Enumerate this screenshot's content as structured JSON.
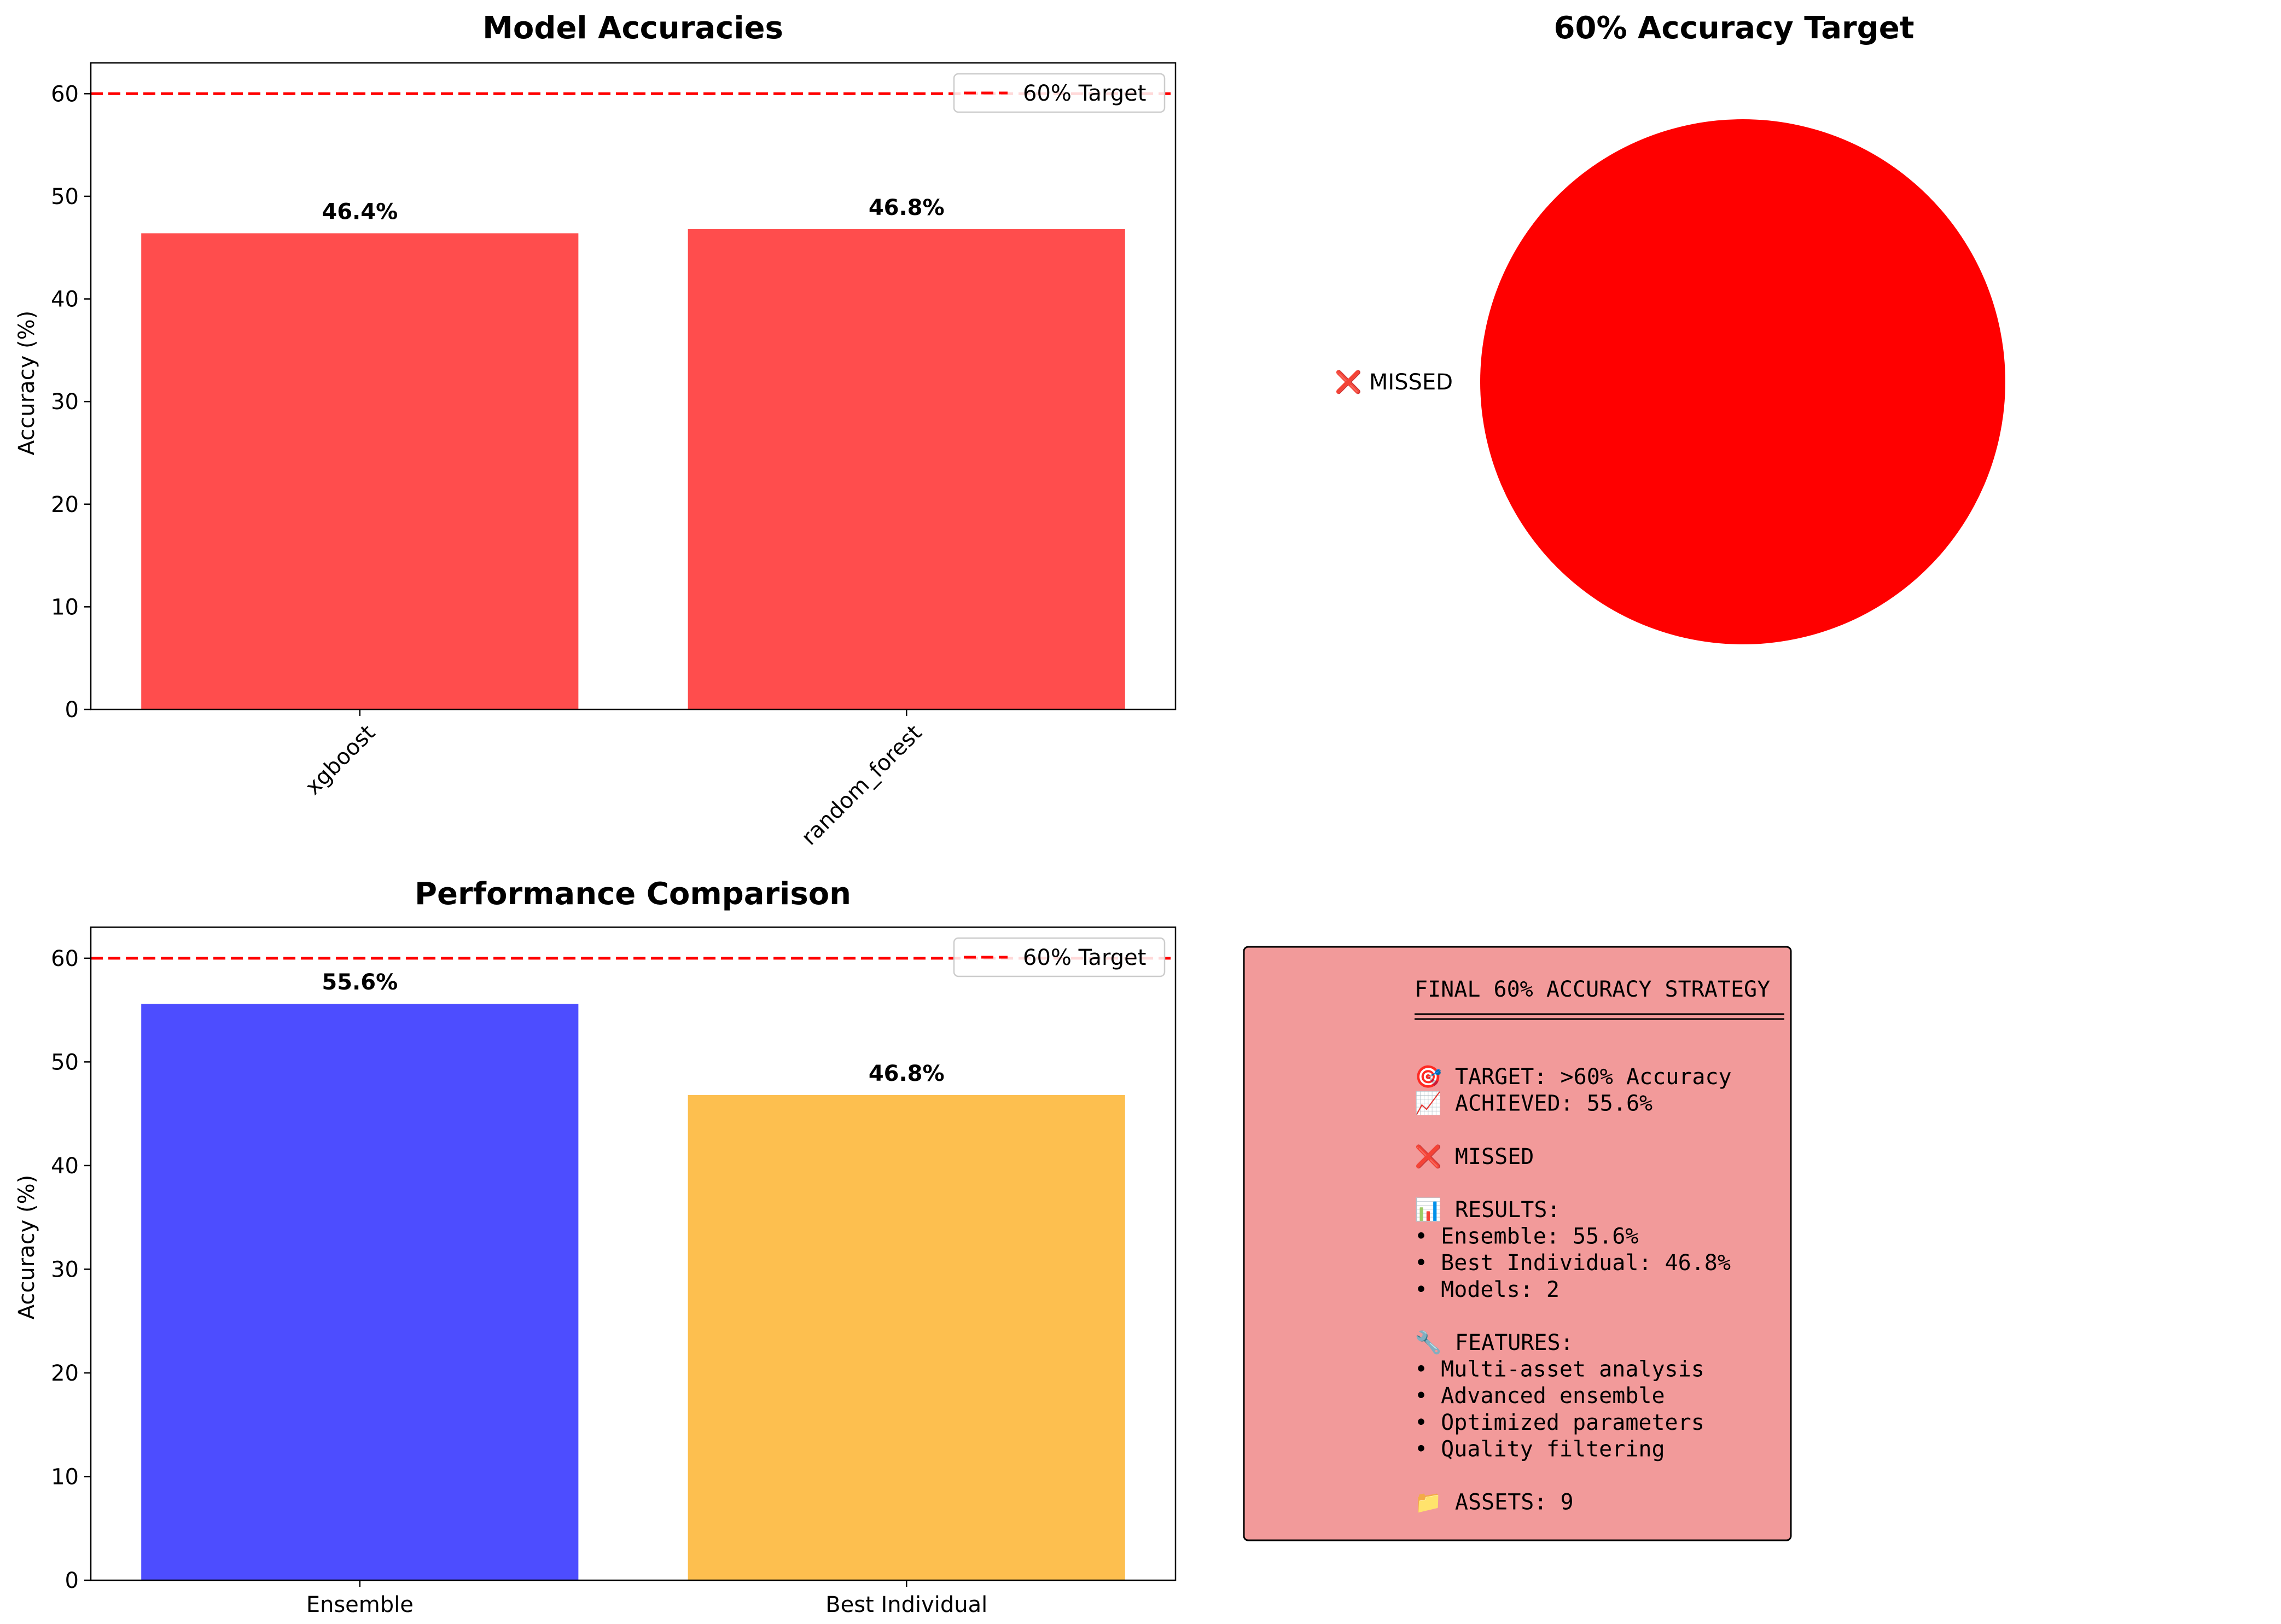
{
  "chart_data": [
    {
      "type": "bar",
      "title": "Model Accuracies",
      "xlabel": "",
      "ylabel": "Accuracy (%)",
      "ylim": [
        0,
        63
      ],
      "yticks": [
        0,
        10,
        20,
        30,
        40,
        50,
        60
      ],
      "categories": [
        "xgboost",
        "random_forest"
      ],
      "values": [
        46.4,
        46.8
      ],
      "value_labels": [
        "46.4%",
        "46.8%"
      ],
      "colors": [
        "#ff4d4d",
        "#ff4d4d"
      ],
      "xtick_rotation": "45",
      "reference_line": {
        "y": 60,
        "label": "60% Target",
        "color": "#ff0000",
        "style": "dashed"
      },
      "legend": {
        "placement": "top-right",
        "entries": [
          "60% Target"
        ]
      },
      "grid": false
    },
    {
      "type": "pie",
      "title": "60% Accuracy Target",
      "labels": [
        "❌ MISSED"
      ],
      "values": [
        1
      ],
      "colors": [
        "#ff0000"
      ]
    },
    {
      "type": "bar",
      "title": "Performance Comparison",
      "xlabel": "",
      "ylabel": "Accuracy (%)",
      "ylim": [
        0,
        63
      ],
      "yticks": [
        0,
        10,
        20,
        30,
        40,
        50,
        60
      ],
      "categories": [
        "Ensemble",
        "Best Individual"
      ],
      "values": [
        55.6,
        46.8
      ],
      "value_labels": [
        "55.6%",
        "46.8%"
      ],
      "colors": [
        "#4d4dff",
        "#fdbf4f"
      ],
      "reference_line": {
        "y": 60,
        "label": "60% Target",
        "color": "#ff0000",
        "style": "dashed"
      },
      "legend": {
        "placement": "top-right",
        "entries": [
          "60% Target"
        ]
      },
      "grid": false
    }
  ],
  "summary_box": {
    "background": "#f29a9a",
    "title": "FINAL 60% ACCURACY STRATEGY",
    "lines": [
      "🎯 TARGET: >60% Accuracy",
      "📈 ACHIEVED: 55.6%",
      "",
      "❌ MISSED",
      "",
      "📊 RESULTS:",
      "• Ensemble: 55.6%",
      "• Best Individual: 46.8%",
      "• Models: 2",
      "",
      "🔧 FEATURES:",
      "• Multi-asset analysis",
      "• Advanced ensemble",
      "• Optimized parameters",
      "• Quality filtering",
      "",
      "📁 ASSETS: 9"
    ]
  }
}
